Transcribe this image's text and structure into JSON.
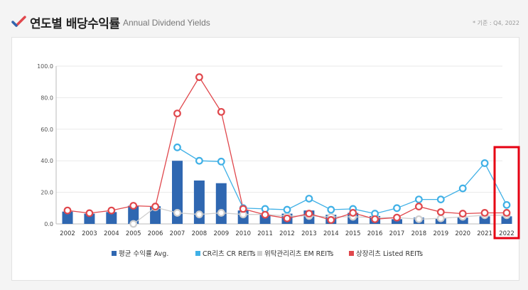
{
  "header": {
    "title_ko": "연도별 배당수익률",
    "title_en": "Annual Dividend Yields",
    "base_note": "* 기준 : Q4, 2022"
  },
  "colors": {
    "avg": "#2f67b1",
    "cr": "#3fb0e6",
    "em": "#cfcfcf",
    "listed": "#e0474c",
    "highlight": "#e60012",
    "check": "#e0474c",
    "check2": "#2f67b1"
  },
  "chart_data": {
    "type": "bar",
    "x": [
      "2002",
      "2003",
      "2004",
      "2005",
      "2006",
      "2007",
      "2008",
      "2009",
      "2010",
      "2011",
      "2012",
      "2013",
      "2014",
      "2015",
      "2016",
      "2017",
      "2018",
      "2019",
      "2020",
      "2021",
      "2022"
    ],
    "ylim": [
      0,
      100
    ],
    "yticks": [
      "0.0",
      "20.0",
      "40.0",
      "60.0",
      "80.0",
      "100.0"
    ],
    "grid": true,
    "legend_position": "bottom",
    "highlight_category": "2022",
    "series": [
      {
        "name": "평균 수익률 Avg.",
        "type": "bar",
        "values": [
          7.8,
          6.5,
          7.5,
          11.5,
          11.2,
          40.0,
          27.5,
          25.8,
          8.5,
          6.0,
          6.5,
          8.5,
          5.8,
          7.0,
          5.0,
          3.0,
          4.0,
          3.5,
          4.0,
          4.8,
          4.8
        ]
      },
      {
        "name": "CR리츠 CR REITs",
        "type": "line",
        "values": [
          null,
          null,
          null,
          null,
          null,
          48.5,
          40.0,
          39.5,
          10.0,
          9.5,
          9.0,
          16.0,
          9.0,
          9.5,
          6.5,
          10.0,
          15.5,
          15.5,
          22.5,
          38.5,
          12.0
        ]
      },
      {
        "name": "위탁관리리츠 EM REITs",
        "type": "line",
        "values": [
          null,
          null,
          null,
          0.0,
          10.5,
          7.0,
          6.0,
          7.0,
          6.0,
          6.0,
          5.0,
          5.0,
          4.5,
          4.5,
          4.0,
          4.0,
          3.0,
          3.5,
          4.5,
          5.5,
          5.5
        ]
      },
      {
        "name": "상장리츠 Listed REITs",
        "type": "line",
        "values": [
          8.5,
          6.8,
          8.5,
          11.5,
          11.0,
          70.0,
          93.0,
          71.0,
          9.5,
          5.8,
          3.5,
          6.5,
          2.5,
          7.0,
          3.0,
          4.0,
          11.0,
          7.5,
          6.5,
          7.0,
          7.0
        ]
      }
    ]
  }
}
